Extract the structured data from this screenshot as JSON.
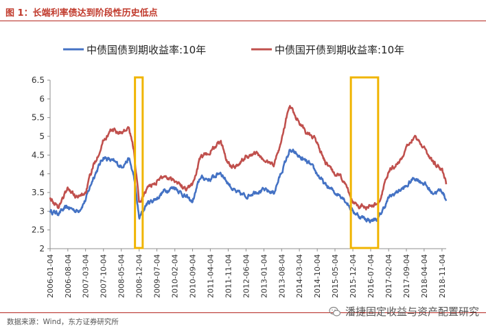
{
  "figure": {
    "title": "图 1：长端利率债达到阶段性历史低点",
    "source": "数据来源：Wind，东方证券研究所",
    "watermark": "潘捷固定收益与资产配置研究"
  },
  "colors": {
    "series_blue": "#4472c4",
    "series_red": "#c0504d",
    "highlight_box": "#f0b400",
    "title_red": "#c0392b"
  },
  "chart_data": {
    "type": "line",
    "title": "",
    "xlabel": "",
    "ylabel": "",
    "ylim": [
      2,
      6.5
    ],
    "yticks": [
      2,
      2.5,
      3,
      3.5,
      4,
      4.5,
      5,
      5.5,
      6,
      6.5
    ],
    "ytick_labels": [
      "2",
      "2.5",
      "3",
      "3.5",
      "4",
      "4.5",
      "5",
      "5.5",
      "6",
      "6.5"
    ],
    "xticks": [
      "2006-01-04",
      "2006-08-04",
      "2007-03-04",
      "2007-10-04",
      "2008-05-04",
      "2008-12-04",
      "2009-07-04",
      "2010-02-04",
      "2010-09-04",
      "2011-04-04",
      "2011-11-04",
      "2012-06-04",
      "2013-01-04",
      "2013-08-04",
      "2014-03-04",
      "2014-10-04",
      "2015-05-04",
      "2015-12-04",
      "2016-07-04",
      "2017-02-04",
      "2017-09-04",
      "2018-04-04",
      "2018-11-04"
    ],
    "legend_position": "top",
    "grid": false,
    "x": [
      "2006-01-04",
      "2006-04-04",
      "2006-08-04",
      "2006-12-04",
      "2007-03-04",
      "2007-06-04",
      "2007-10-04",
      "2008-01-04",
      "2008-05-04",
      "2008-08-04",
      "2008-10-04",
      "2008-12-04",
      "2009-03-04",
      "2009-07-04",
      "2009-10-04",
      "2010-02-04",
      "2010-06-04",
      "2010-09-04",
      "2010-12-04",
      "2011-04-04",
      "2011-08-04",
      "2011-11-04",
      "2012-02-04",
      "2012-06-04",
      "2012-10-04",
      "2013-01-04",
      "2013-05-04",
      "2013-08-04",
      "2013-11-04",
      "2014-01-04",
      "2014-03-04",
      "2014-07-04",
      "2014-10-04",
      "2015-01-04",
      "2015-05-04",
      "2015-08-04",
      "2015-12-04",
      "2016-03-04",
      "2016-07-04",
      "2016-10-04",
      "2017-02-04",
      "2017-06-04",
      "2017-09-04",
      "2017-12-04",
      "2018-04-04",
      "2018-07-04",
      "2018-11-04",
      "2018-12-24"
    ],
    "series": [
      {
        "name": "中债国债到期收益率:10年",
        "color": "#4472c4",
        "values": [
          3.0,
          2.95,
          3.1,
          3.0,
          3.3,
          3.9,
          4.45,
          4.35,
          4.2,
          4.4,
          3.9,
          2.8,
          3.2,
          3.35,
          3.55,
          3.65,
          3.4,
          3.25,
          3.9,
          3.85,
          4.05,
          3.75,
          3.5,
          3.4,
          3.55,
          3.55,
          3.5,
          4.05,
          4.6,
          4.55,
          4.45,
          4.25,
          4.0,
          3.7,
          3.5,
          3.4,
          3.0,
          2.85,
          2.75,
          2.8,
          3.35,
          3.55,
          3.65,
          3.9,
          3.75,
          3.5,
          3.55,
          3.3
        ]
      },
      {
        "name": "中债国开债到期收益率:10年",
        "color": "#c0504d",
        "values": [
          3.4,
          3.1,
          3.6,
          3.35,
          3.5,
          4.2,
          4.9,
          5.15,
          5.1,
          5.2,
          4.6,
          3.2,
          3.6,
          3.8,
          3.95,
          3.85,
          3.6,
          3.7,
          4.4,
          4.6,
          4.85,
          4.3,
          4.2,
          4.45,
          4.55,
          4.35,
          4.25,
          4.9,
          5.85,
          5.6,
          5.4,
          5.0,
          4.85,
          4.3,
          4.0,
          3.85,
          3.25,
          3.15,
          3.1,
          3.2,
          4.05,
          4.3,
          4.65,
          5.05,
          4.7,
          4.35,
          4.1,
          3.75
        ]
      }
    ],
    "highlights": [
      {
        "x_from": "2008-10-15",
        "x_to": "2009-01-15"
      },
      {
        "x_from": "2015-11-10",
        "x_to": "2016-10-01"
      }
    ]
  }
}
